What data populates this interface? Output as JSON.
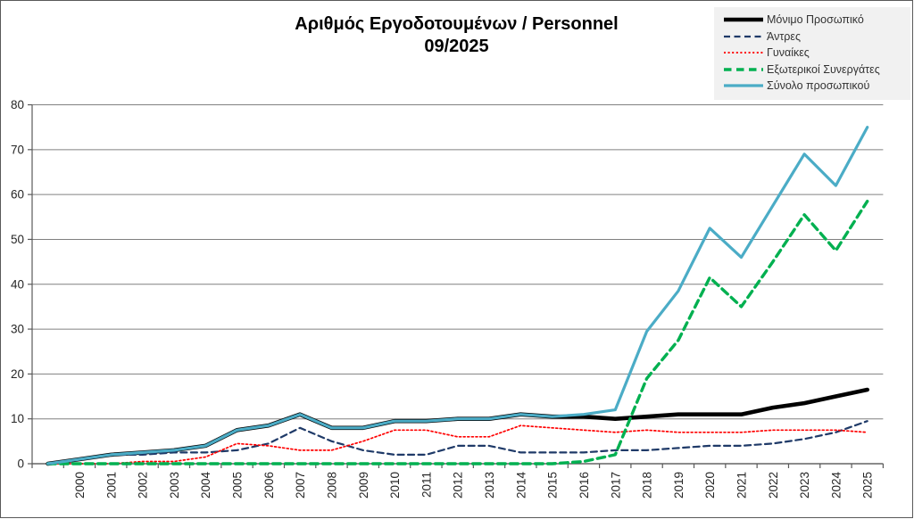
{
  "header": {
    "title_line1": "Αριθμός Εργοδοτουμένων / Personnel",
    "title_line2": "09/2025"
  },
  "axes": {
    "y_ticks": [
      0,
      10,
      20,
      30,
      40,
      50,
      60,
      70,
      80
    ],
    "x_labels": [
      "2000",
      "2001",
      "2002",
      "2003",
      "2004",
      "2005",
      "2006",
      "2007",
      "2008",
      "2009",
      "2010",
      "2011",
      "2012",
      "2013",
      "2014",
      "2015",
      "2016",
      "2017",
      "2018",
      "2019",
      "2020",
      "2021",
      "2022",
      "2023",
      "2024",
      "2025"
    ]
  },
  "colors": {
    "permanent": "#000000",
    "men": "#1f3a68",
    "women": "#ff0000",
    "external": "#00b050",
    "total": "#4bacc6",
    "gridline": "#808080",
    "axis": "#595959",
    "legend_bg": "#f1f1f1"
  },
  "chart_data": {
    "type": "line",
    "title": "Αριθμός Εργοδοτουμένων / Personnel 09/2025",
    "grid": true,
    "legend_position": "top-right",
    "ylim": [
      0,
      80
    ],
    "ytick_step": 10,
    "categories": [
      "",
      "2000",
      "2001",
      "2002",
      "2003",
      "2004",
      "2005",
      "2006",
      "2007",
      "2008",
      "2009",
      "2010",
      "2011",
      "2012",
      "2013",
      "2014",
      "2015",
      "2016",
      "2017",
      "2018",
      "2019",
      "2020",
      "2021",
      "2022",
      "2023",
      "2024",
      "2025"
    ],
    "series": [
      {
        "name": "Μόνιμο Προσωπικό",
        "color": "#000000",
        "style": "solid-thick",
        "values": [
          0,
          1,
          2,
          2.5,
          3,
          4,
          7.5,
          8.5,
          11,
          8,
          8,
          9.5,
          9.5,
          10,
          10,
          11,
          10.5,
          10.5,
          10,
          10.5,
          11,
          11,
          11,
          12.5,
          13.5,
          15,
          16.5
        ]
      },
      {
        "name": "Άντρες",
        "color": "#1f3a68",
        "style": "dashed",
        "values": [
          0,
          1,
          2,
          2,
          2.5,
          2.5,
          3,
          4.5,
          8,
          5,
          3,
          2,
          2,
          4,
          4,
          2.5,
          2.5,
          2.5,
          3,
          3,
          3.5,
          4,
          4,
          4.5,
          5.5,
          7,
          9.5
        ]
      },
      {
        "name": "Γυναίκες",
        "color": "#ff0000",
        "style": "dotted",
        "values": [
          0,
          0,
          0,
          0.5,
          0.5,
          1.5,
          4.5,
          4,
          3,
          3,
          5,
          7.5,
          7.5,
          6,
          6,
          8.5,
          8,
          7.5,
          7,
          7.5,
          7,
          7,
          7,
          7.5,
          7.5,
          7.5,
          7
        ]
      },
      {
        "name": "Εξωτερικοί Συνεργάτες",
        "color": "#00b050",
        "style": "dashed-thick",
        "values": [
          0,
          0,
          0,
          0,
          0,
          0,
          0,
          0,
          0,
          0,
          0,
          0,
          0,
          0,
          0,
          0,
          0,
          0.5,
          2,
          19,
          27.5,
          41.5,
          35,
          45,
          55.5,
          47.5,
          58.5
        ]
      },
      {
        "name": "Σύνολο προσωπικού",
        "color": "#4bacc6",
        "style": "solid",
        "values": [
          0,
          1,
          2,
          2.5,
          3,
          4,
          7.5,
          8.5,
          11,
          8,
          8,
          9.5,
          9.5,
          10,
          10,
          11,
          10.5,
          11,
          12,
          29.5,
          38.5,
          52.5,
          46,
          57.5,
          69,
          62,
          75
        ]
      }
    ]
  }
}
